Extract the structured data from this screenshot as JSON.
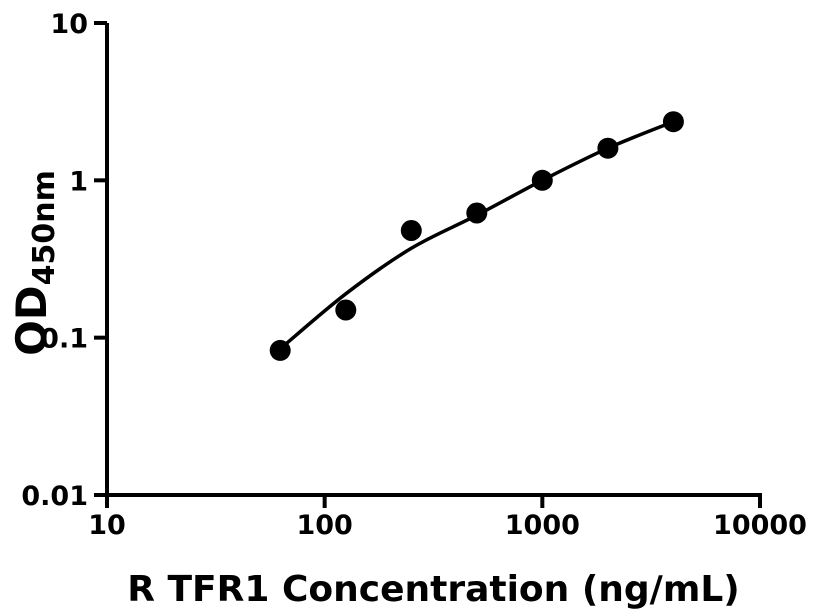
{
  "figure": {
    "kind": "elisa-standard-curve",
    "background_color": "#ffffff",
    "foreground_color": "#000000"
  },
  "chart_data": {
    "type": "scatter",
    "title": "",
    "xlabel": "R TFR1 Concentration (ng/mL)",
    "ylabel": "OD",
    "ylabel_subscript": "450nm",
    "x_scale": "log",
    "y_scale": "log",
    "xlim": [
      10,
      10000
    ],
    "ylim": [
      0.01,
      10
    ],
    "x_ticks": [
      10,
      100,
      1000,
      10000
    ],
    "x_tick_labels": [
      "10",
      "100",
      "1000",
      "10000"
    ],
    "y_ticks": [
      0.01,
      0.1,
      1,
      10
    ],
    "y_tick_labels": [
      "0.01",
      "0.1",
      "1",
      "10"
    ],
    "grid": false,
    "legend": null,
    "marker": {
      "shape": "circle",
      "color": "#000000",
      "radius_px": 10.5
    },
    "series": [
      {
        "name": "standard-curve-points",
        "points": [
          [
            62.5,
            0.083
          ],
          [
            125,
            0.15
          ],
          [
            250,
            0.48
          ],
          [
            500,
            0.62
          ],
          [
            1000,
            1.0
          ],
          [
            2000,
            1.6
          ],
          [
            4000,
            2.36
          ]
        ]
      }
    ],
    "fit_curve": {
      "name": "four-parameter-fit",
      "color": "#000000",
      "points": [
        [
          62.5,
          0.085
        ],
        [
          125,
          0.19
        ],
        [
          250,
          0.37
        ],
        [
          500,
          0.6
        ],
        [
          1000,
          1.0
        ],
        [
          2000,
          1.6
        ],
        [
          4000,
          2.36
        ]
      ]
    }
  }
}
